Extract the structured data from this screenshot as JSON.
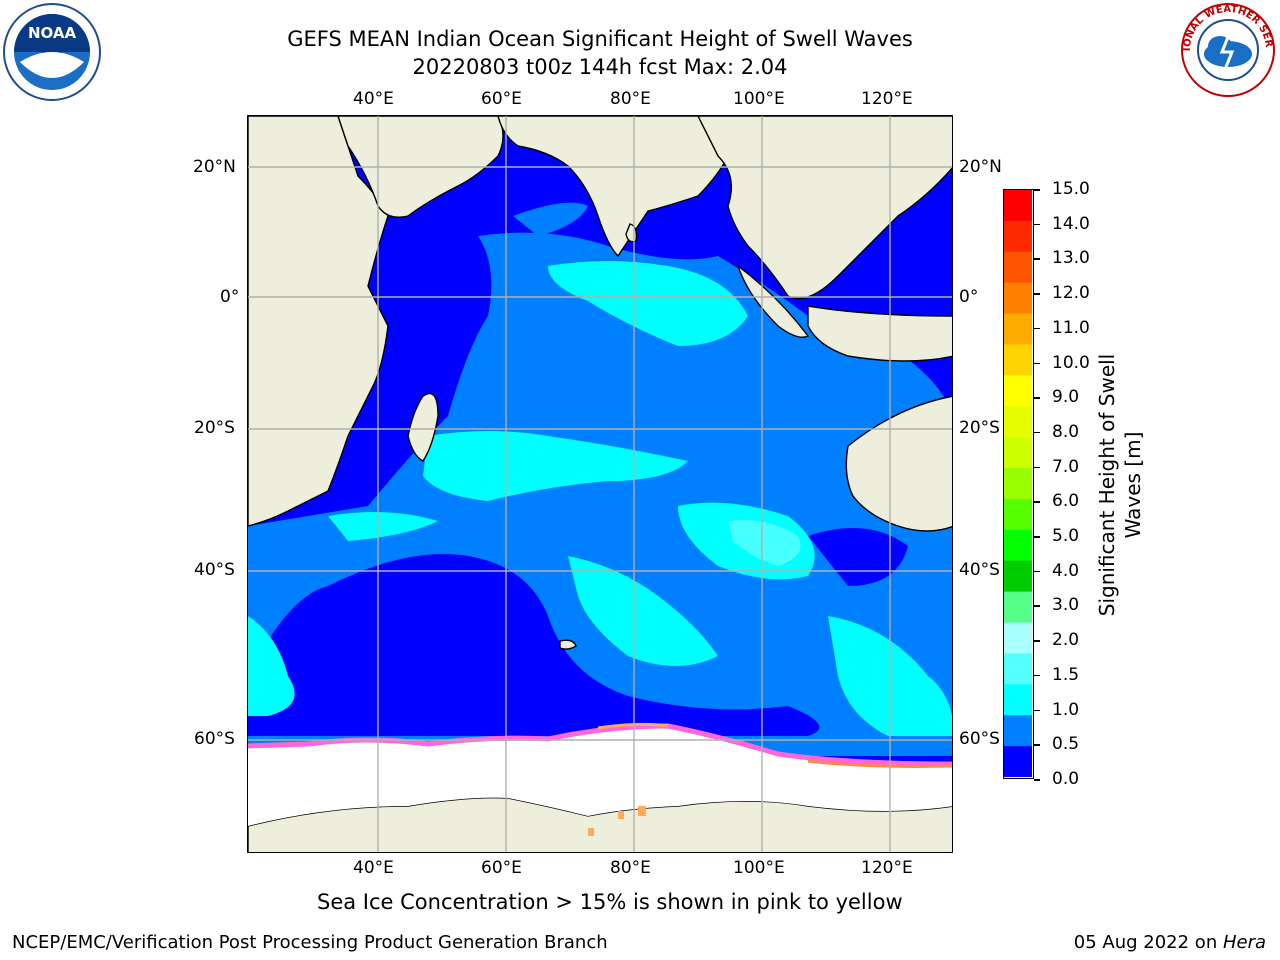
{
  "title": {
    "line1": "GEFS MEAN Indian Ocean Significant Height of Swell Waves",
    "line2": "20220803 t00z 144h fcst   Max: 2.04"
  },
  "map": {
    "lon_labels": [
      "40°E",
      "60°E",
      "80°E",
      "100°E",
      "120°E"
    ],
    "lat_labels": [
      "20°N",
      "0°",
      "20°S",
      "40°S",
      "60°S"
    ],
    "note": "Sea Ice Concentration > 15% is shown in pink to yellow"
  },
  "colorbar": {
    "title_line1": "Significant Height of Swell",
    "title_line2": "Waves [m]",
    "ticks": [
      "15.0",
      "14.0",
      "13.0",
      "12.0",
      "11.0",
      "10.0",
      "9.0",
      "8.0",
      "7.0",
      "6.0",
      "5.0",
      "4.0",
      "3.0",
      "2.0",
      "1.5",
      "1.0",
      "0.5",
      "0.0"
    ],
    "colors_top_to_bottom": [
      "#ff0000",
      "#ff2a00",
      "#ff5500",
      "#ff8000",
      "#ffaa00",
      "#ffd400",
      "#ffff00",
      "#e6ff00",
      "#ccff00",
      "#99ff00",
      "#55ff00",
      "#00ff00",
      "#00cc00",
      "#55ff88",
      "#aaffff",
      "#55ffff",
      "#00ffff",
      "#0080ff",
      "#0000ff"
    ]
  },
  "logos": {
    "noaa_text": "NOAA",
    "nws_text": "NATIONAL WEATHER SERVICE"
  },
  "footer": {
    "left": "NCEP/EMC/Verification Post Processing Product Generation Branch",
    "right_date": "05 Aug 2022 on ",
    "right_host": "Hera"
  }
}
